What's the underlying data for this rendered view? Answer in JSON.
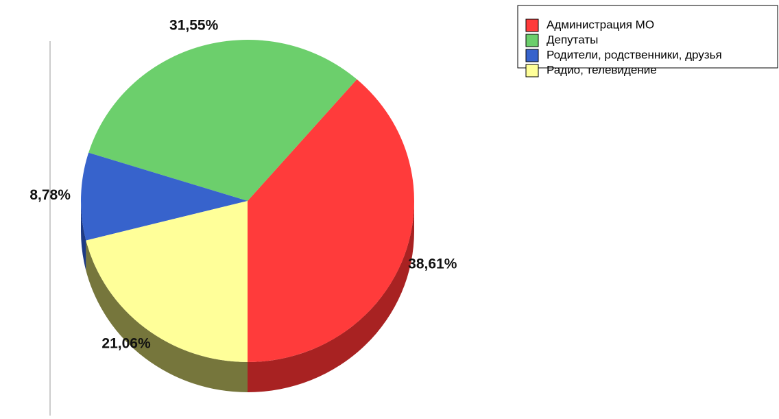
{
  "chart_data": {
    "type": "pie",
    "categories": [
      "Администрация МО",
      "Депутаты",
      "Родители, родственники, друзья",
      "Радио, телевидение"
    ],
    "values": [
      38.61,
      31.55,
      8.78,
      21.06
    ],
    "value_labels": [
      "38,61%",
      "31,55%",
      "8,78%",
      "21,06%"
    ],
    "colors": [
      "#ff3b3b",
      "#6ccf6c",
      "#3763cc",
      "#ffff99"
    ],
    "side_colors": [
      "#a82222",
      "#3f8a3f",
      "#1d3a85",
      "#76763c"
    ],
    "legend": "top-right"
  }
}
